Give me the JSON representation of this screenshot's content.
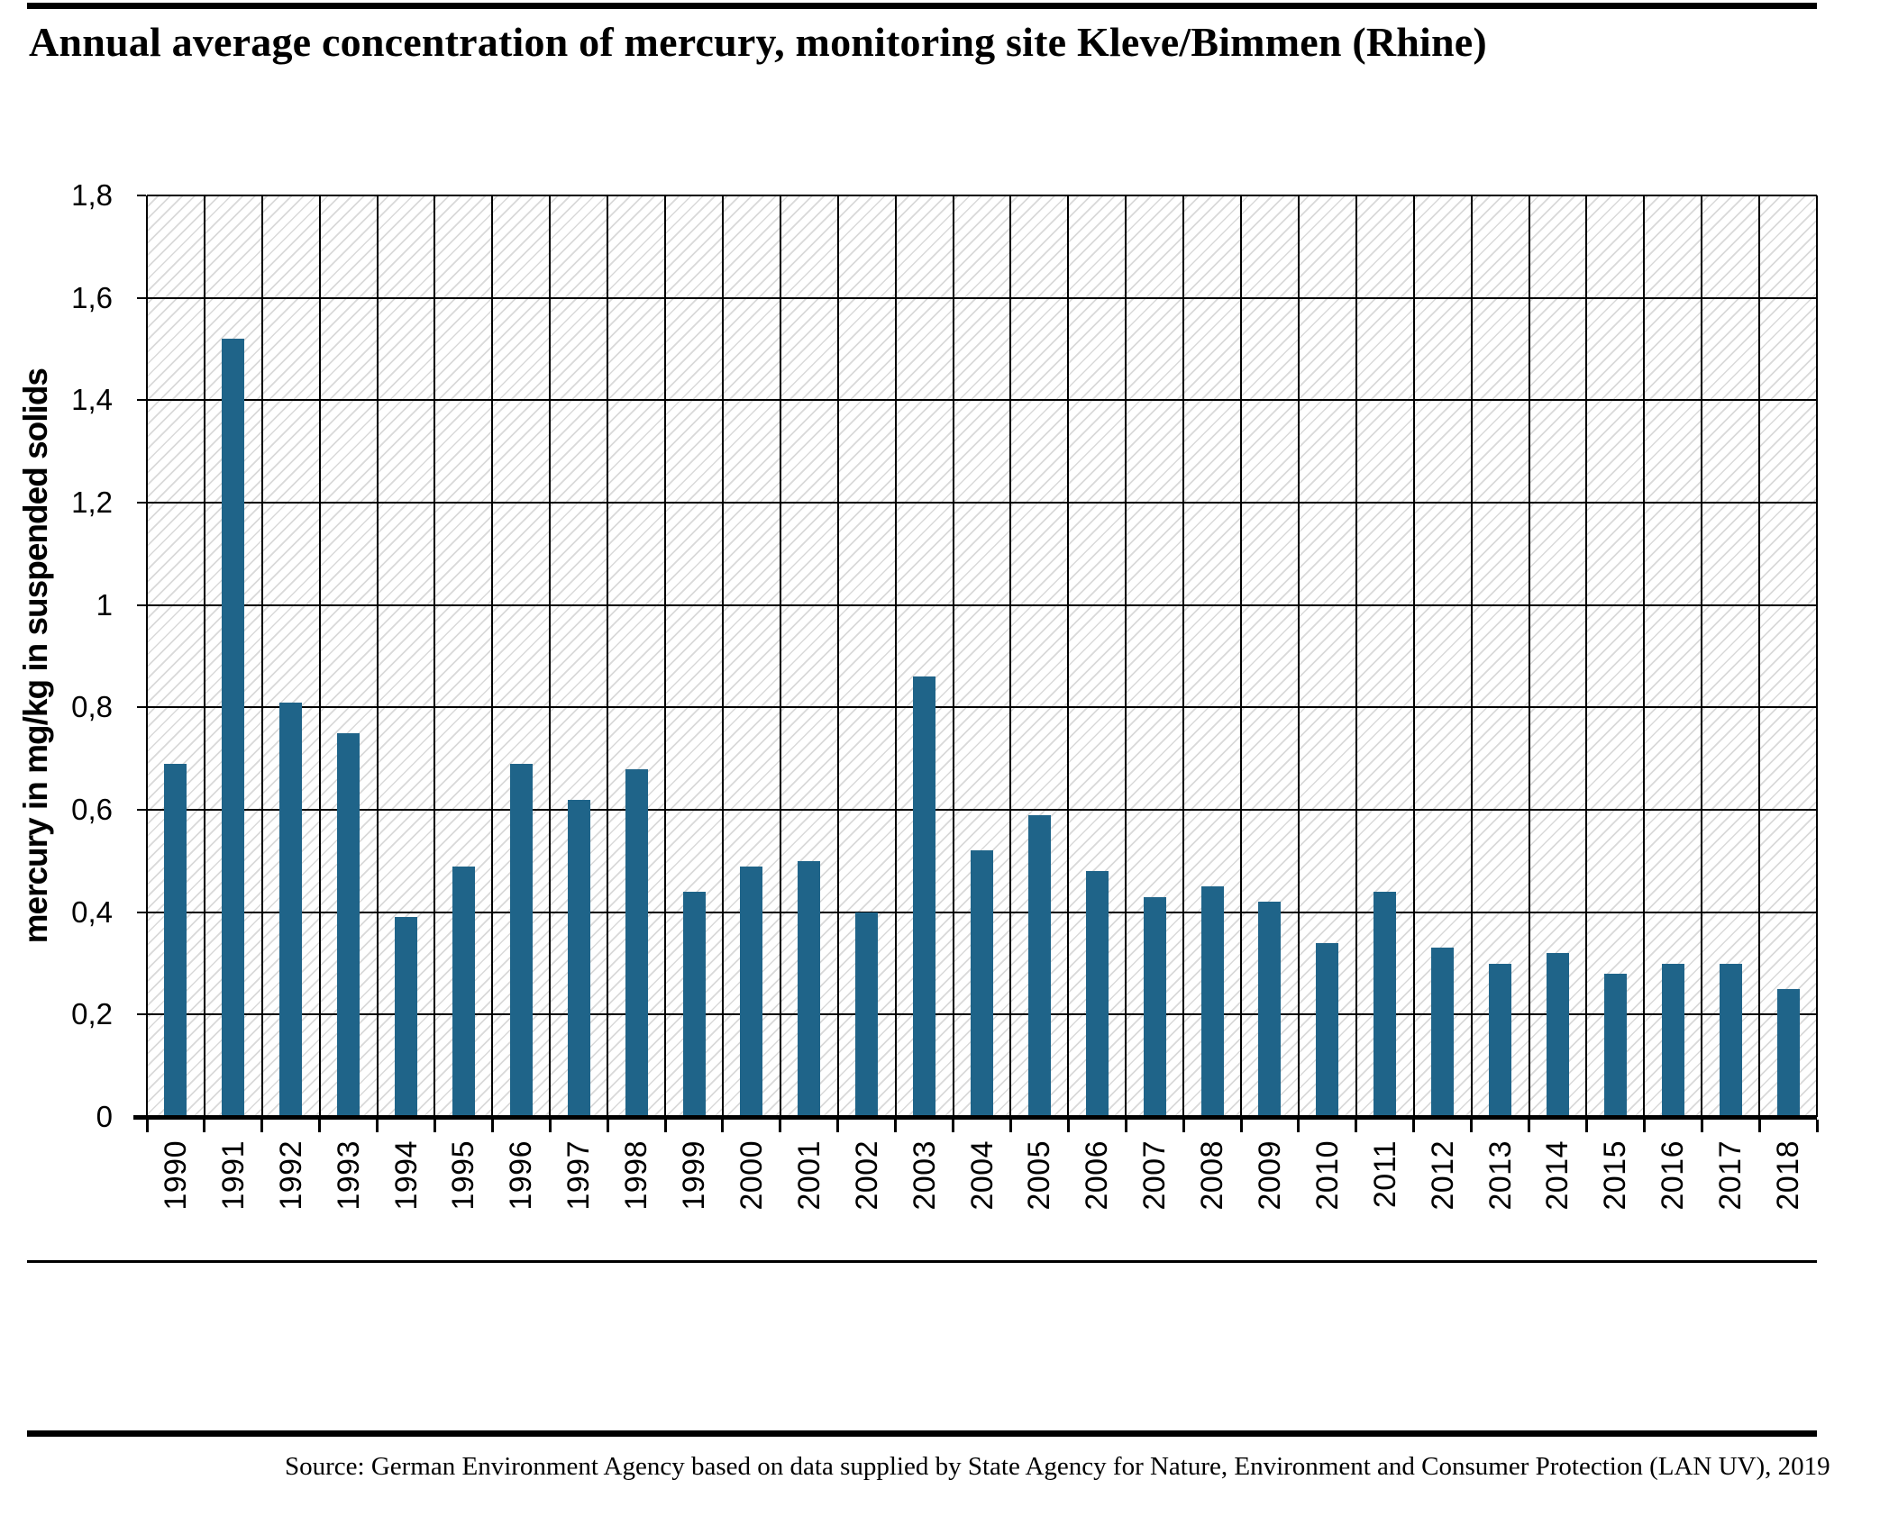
{
  "title": "Annual average concentration of mercury, monitoring site Kleve/Bimmen (Rhine)",
  "y_axis_title": "mercury in mg/kg in suspended solids",
  "source": "Source: German Environment Agency based on data supplied by State Agency for Nature, Environment and Consumer Protection (LAN UV), 2019",
  "colors": {
    "bar": "#1F6489",
    "grid": "#000000",
    "hatch": "#D9D9D9",
    "rule": "#000000"
  },
  "chart_data": {
    "type": "bar",
    "title": "Annual average concentration of mercury, monitoring site Kleve/Bimmen (Rhine)",
    "xlabel": "",
    "ylabel": "mercury in mg/kg in suspended solids",
    "ylim": [
      0,
      1.8
    ],
    "ytick_step": 0.2,
    "ytick_labels": [
      "0",
      "0,2",
      "0,4",
      "0,6",
      "0,8",
      "1",
      "1,2",
      "1,4",
      "1,6",
      "1,8"
    ],
    "decimal_separator": ",",
    "grid": true,
    "legend_position": "none",
    "plot_background": "diagonal-hatch",
    "categories": [
      "1990",
      "1991",
      "1992",
      "1993",
      "1994",
      "1995",
      "1996",
      "1997",
      "1998",
      "1999",
      "2000",
      "2001",
      "2002",
      "2003",
      "2004",
      "2005",
      "2006",
      "2007",
      "2008",
      "2009",
      "2010",
      "2011",
      "2012",
      "2013",
      "2014",
      "2015",
      "2016",
      "2017",
      "2018"
    ],
    "values": [
      0.69,
      1.52,
      0.81,
      0.75,
      0.39,
      0.49,
      0.69,
      0.62,
      0.68,
      0.44,
      0.49,
      0.5,
      0.4,
      0.86,
      0.52,
      0.59,
      0.48,
      0.43,
      0.45,
      0.42,
      0.34,
      0.44,
      0.33,
      0.3,
      0.32,
      0.28,
      0.3,
      0.3,
      0.25
    ]
  }
}
